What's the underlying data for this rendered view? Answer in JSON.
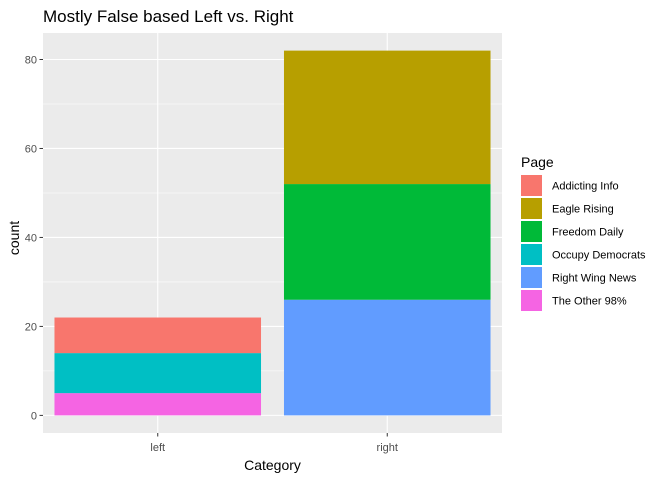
{
  "chart_data": {
    "type": "bar",
    "stacked": true,
    "title": "Mostly False based Left vs. Right",
    "xlabel": "Category",
    "ylabel": "count",
    "categories": [
      "left",
      "right"
    ],
    "ylim": [
      0,
      85
    ],
    "yticks": [
      0,
      20,
      40,
      60,
      80
    ],
    "ytick_labels": [
      "0",
      "20",
      "40",
      "60",
      "80"
    ],
    "grid": true,
    "legend_title": "Page",
    "legend_position": "right",
    "series": [
      {
        "name": "Addicting Info",
        "color": "#F8766D",
        "values": [
          8,
          0
        ]
      },
      {
        "name": "Eagle Rising",
        "color": "#B79F00",
        "values": [
          0,
          30
        ]
      },
      {
        "name": "Freedom Daily",
        "color": "#00BA38",
        "values": [
          0,
          26
        ]
      },
      {
        "name": "Occupy Democrats",
        "color": "#00BFC4",
        "values": [
          9,
          0
        ]
      },
      {
        "name": "Right Wing News",
        "color": "#619CFF",
        "values": [
          0,
          26
        ]
      },
      {
        "name": "The Other 98%",
        "color": "#F564E3",
        "values": [
          5,
          0
        ]
      }
    ]
  }
}
